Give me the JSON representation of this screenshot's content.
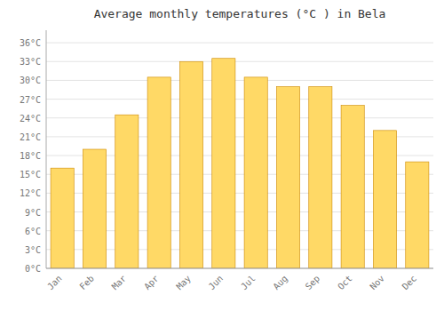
{
  "chart_data": {
    "type": "bar",
    "title": "Average monthly temperatures (°C ) in Bela",
    "categories": [
      "Jan",
      "Feb",
      "Mar",
      "Apr",
      "May",
      "Jun",
      "Jul",
      "Aug",
      "Sep",
      "Oct",
      "Nov",
      "Dec"
    ],
    "values": [
      16,
      19,
      24.5,
      30.5,
      33,
      33.5,
      30.5,
      29,
      29,
      26,
      22,
      17
    ],
    "color": "#FFD966",
    "ylim": [
      0,
      38
    ],
    "yticks": [
      {
        "value": 0,
        "label": "0°C"
      },
      {
        "value": 3,
        "label": "3°C"
      },
      {
        "value": 6,
        "label": "6°C"
      },
      {
        "value": 9,
        "label": "9°C"
      },
      {
        "value": 12,
        "label": "12°C"
      },
      {
        "value": 15,
        "label": "15°C"
      },
      {
        "value": 18,
        "label": "18°C"
      },
      {
        "value": 21,
        "label": "21°C"
      },
      {
        "value": 24,
        "label": "24°C"
      },
      {
        "value": 27,
        "label": "27°C"
      },
      {
        "value": 30,
        "label": "30°C"
      },
      {
        "value": 33,
        "label": "33°C"
      },
      {
        "value": 36,
        "label": "36°C"
      }
    ],
    "grid": true
  }
}
